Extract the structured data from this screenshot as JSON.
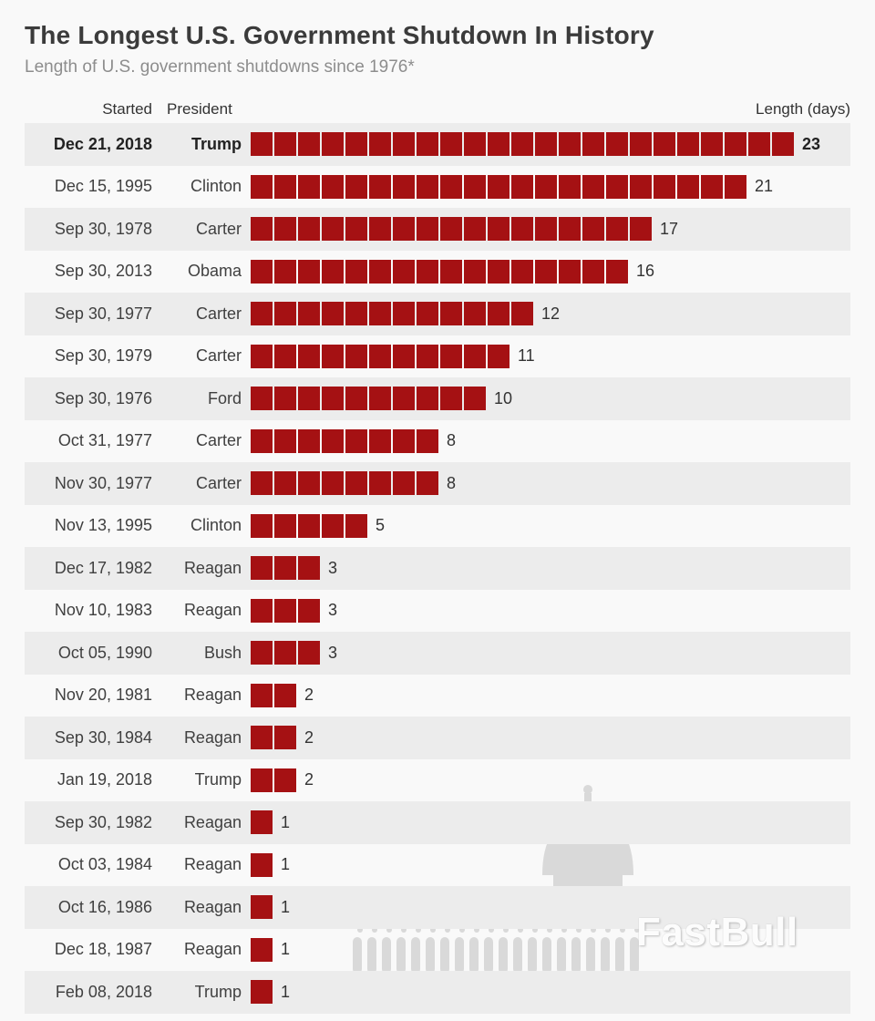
{
  "title": "The Longest U.S. Government Shutdown In History",
  "subtitle": "Length of U.S. government shutdowns since 1976*",
  "columns": {
    "started": "Started",
    "president": "President",
    "length": "Length (days)"
  },
  "watermark": {
    "logo": "FastBull",
    "icon": "capitol-building-icon"
  },
  "colors": {
    "bar": "#a51113",
    "stripe": "#ececec",
    "background": "#f9f9f9",
    "title": "#3b3b3b",
    "subtitle": "#8d8d8d",
    "watermark": "#d9d9d9"
  },
  "chart_data": {
    "type": "bar",
    "orientation": "horizontal",
    "unit": "days",
    "title": "The Longest U.S. Government Shutdown In History",
    "subtitle": "Length of U.S. government shutdowns since 1976*",
    "value_range": [
      0,
      23
    ],
    "rows": [
      {
        "started": "Dec 21, 2018",
        "president": "Trump",
        "days": 23,
        "highlight": true
      },
      {
        "started": "Dec 15, 1995",
        "president": "Clinton",
        "days": 21,
        "highlight": false
      },
      {
        "started": "Sep 30, 1978",
        "president": "Carter",
        "days": 17,
        "highlight": false
      },
      {
        "started": "Sep 30, 2013",
        "president": "Obama",
        "days": 16,
        "highlight": false
      },
      {
        "started": "Sep 30, 1977",
        "president": "Carter",
        "days": 12,
        "highlight": false
      },
      {
        "started": "Sep 30, 1979",
        "president": "Carter",
        "days": 11,
        "highlight": false
      },
      {
        "started": "Sep 30, 1976",
        "president": "Ford",
        "days": 10,
        "highlight": false
      },
      {
        "started": "Oct 31, 1977",
        "president": "Carter",
        "days": 8,
        "highlight": false
      },
      {
        "started": "Nov 30, 1977",
        "president": "Carter",
        "days": 8,
        "highlight": false
      },
      {
        "started": "Nov 13, 1995",
        "president": "Clinton",
        "days": 5,
        "highlight": false
      },
      {
        "started": "Dec 17, 1982",
        "president": "Reagan",
        "days": 3,
        "highlight": false
      },
      {
        "started": "Nov 10, 1983",
        "president": "Reagan",
        "days": 3,
        "highlight": false
      },
      {
        "started": "Oct 05, 1990",
        "president": "Bush",
        "days": 3,
        "highlight": false
      },
      {
        "started": "Nov 20, 1981",
        "president": "Reagan",
        "days": 2,
        "highlight": false
      },
      {
        "started": "Sep 30, 1984",
        "president": "Reagan",
        "days": 2,
        "highlight": false
      },
      {
        "started": "Jan 19, 2018",
        "president": "Trump",
        "days": 2,
        "highlight": false
      },
      {
        "started": "Sep 30, 1982",
        "president": "Reagan",
        "days": 1,
        "highlight": false
      },
      {
        "started": "Oct 03, 1984",
        "president": "Reagan",
        "days": 1,
        "highlight": false
      },
      {
        "started": "Oct 16, 1986",
        "president": "Reagan",
        "days": 1,
        "highlight": false
      },
      {
        "started": "Dec 18, 1987",
        "president": "Reagan",
        "days": 1,
        "highlight": false
      },
      {
        "started": "Feb 08, 2018",
        "president": "Trump",
        "days": 1,
        "highlight": false
      }
    ]
  }
}
